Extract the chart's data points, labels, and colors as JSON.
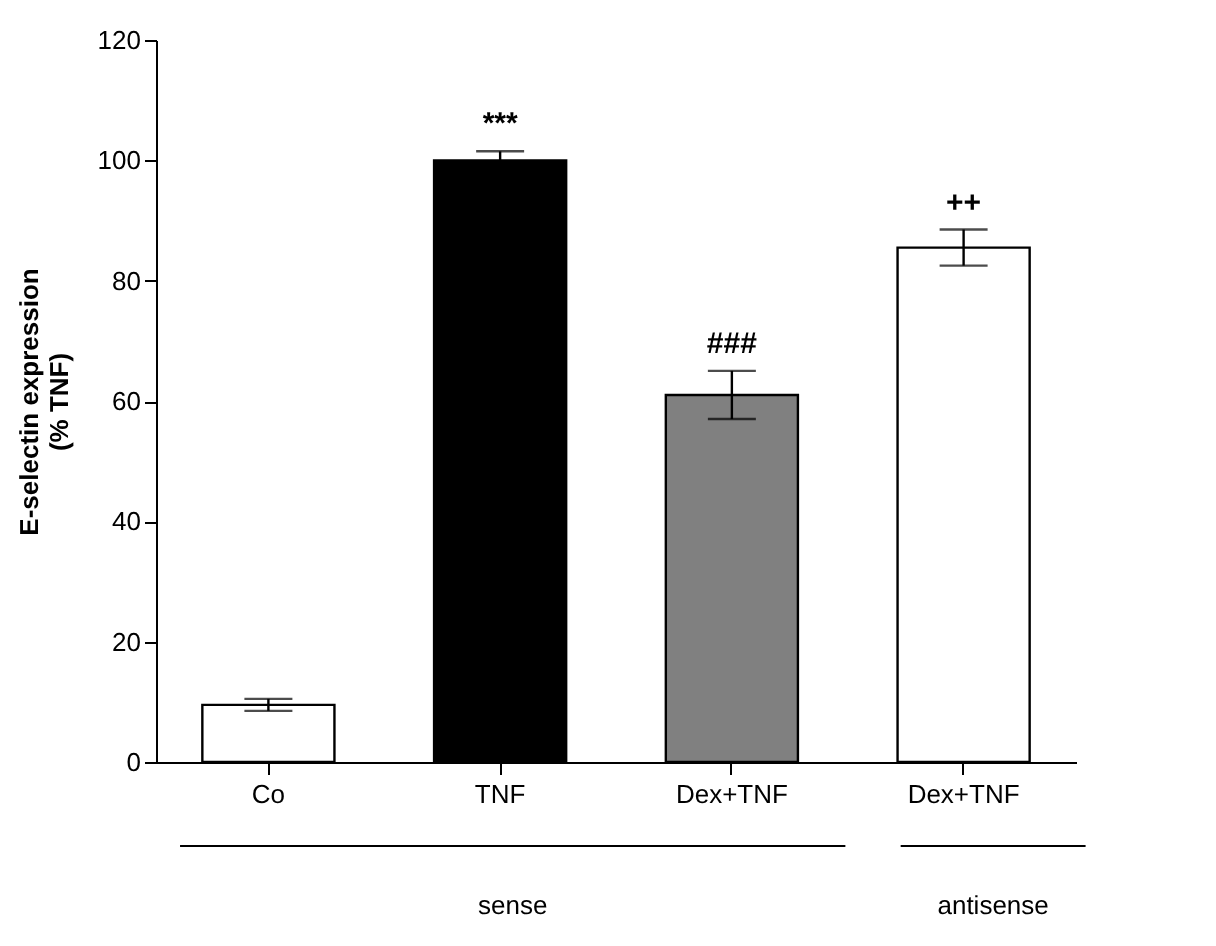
{
  "chart_data": {
    "type": "bar",
    "ylabel": "E-selectin expression\n(% TNF)",
    "categories": [
      "Co",
      "TNF",
      "Dex+TNF",
      "Dex+TNF"
    ],
    "values": [
      9.5,
      100,
      61,
      85.5
    ],
    "colors": [
      "#ffffff",
      "#000000",
      "#808080",
      "#ffffff"
    ],
    "errors": [
      1,
      1.5,
      4,
      3
    ],
    "value_labels": [
      null,
      "***",
      "###",
      "++"
    ],
    "ylim": [
      0,
      120
    ],
    "yticks": [
      0,
      20,
      40,
      60,
      80,
      100,
      120
    ],
    "grid": false,
    "legend": false,
    "annotations": [
      "sense",
      "antisense"
    ]
  }
}
